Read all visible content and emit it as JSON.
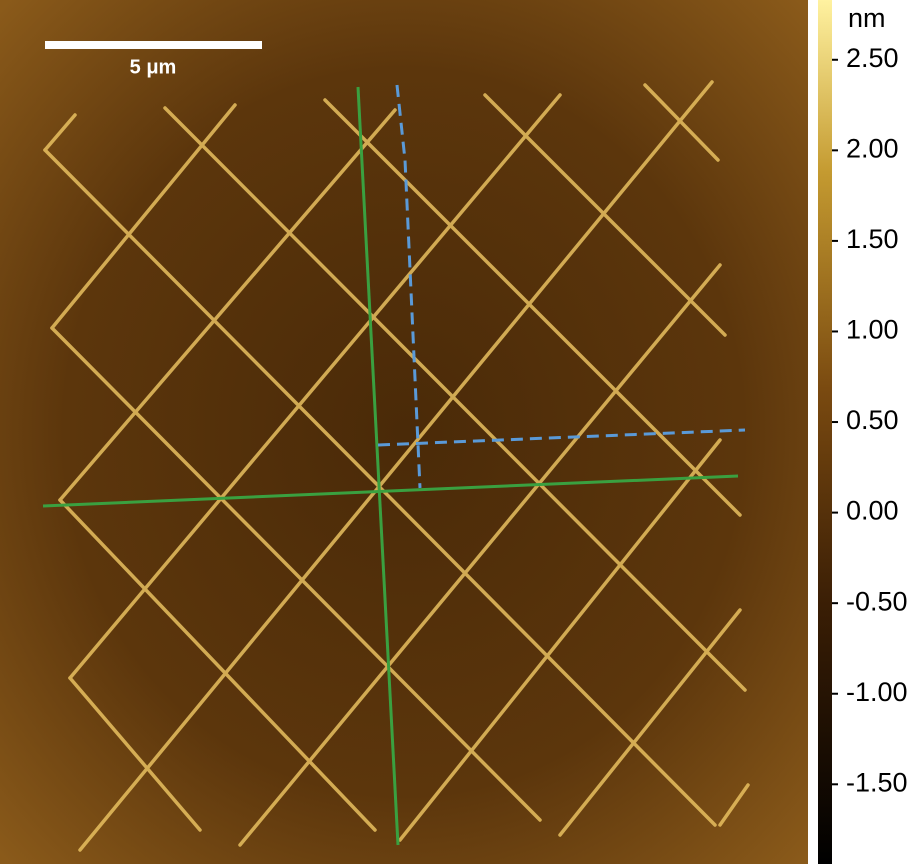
{
  "scale_bar": {
    "label": "5 μm"
  },
  "colorbar": {
    "unit": "nm",
    "range": [
      -1.94,
      2.83
    ],
    "ticks": [
      {
        "value": 2.5,
        "label": "2.50"
      },
      {
        "value": 2.0,
        "label": "2.00"
      },
      {
        "value": 1.5,
        "label": "1.50"
      },
      {
        "value": 1.0,
        "label": "1.00"
      },
      {
        "value": 0.5,
        "label": "0.50"
      },
      {
        "value": 0.0,
        "label": "0.00"
      },
      {
        "value": -0.5,
        "label": "-0.50"
      },
      {
        "value": -1.0,
        "label": "-1.00"
      },
      {
        "value": -1.5,
        "label": "-1.50"
      }
    ]
  }
}
